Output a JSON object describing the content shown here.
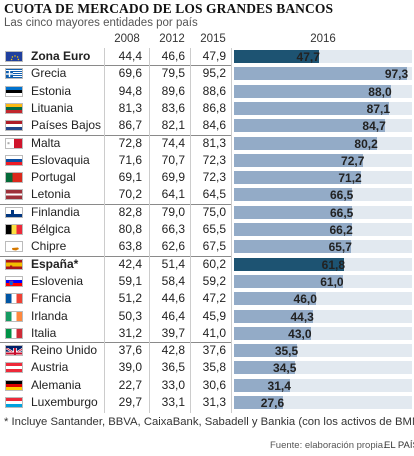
{
  "title": "CUOTA DE MERCADO DE LOS GRANDES BANCOS",
  "subtitle": "Las cinco mayores entidades por país",
  "footnote": "* Incluye Santander, BBVA, CaixaBank, Sabadell y Bankia (con los activos de BMN)",
  "source": "Fuente: elaboración propia.",
  "brand": "EL PAÍS",
  "colors": {
    "highlight_bar": "#1d5372",
    "bar": "#93abc7",
    "track": "#e2e9f0"
  },
  "chart_data": {
    "type": "table",
    "title": "CUOTA DE MERCADO DE LOS GRANDES BANCOS",
    "subtitle": "Las cinco mayores entidades por país",
    "columns": [
      "2008",
      "2012",
      "2015",
      "2016"
    ],
    "bar_column": "2016",
    "bar_max": 100,
    "rows": [
      {
        "country": "Zona Euro",
        "flag": "eu",
        "v2008": "44,4",
        "v2012": "46,6",
        "v2015": "47,9",
        "v2016": 47.7,
        "label2016": "47,7",
        "highlight": true
      },
      {
        "country": "Grecia",
        "flag": "gr",
        "v2008": "69,6",
        "v2012": "79,5",
        "v2015": "95,2",
        "v2016": 97.3,
        "label2016": "97,3"
      },
      {
        "country": "Estonia",
        "flag": "ee",
        "v2008": "94,8",
        "v2012": "89,6",
        "v2015": "88,6",
        "v2016": 88.0,
        "label2016": "88,0"
      },
      {
        "country": "Lituania",
        "flag": "lt",
        "v2008": "81,3",
        "v2012": "83,6",
        "v2015": "86,8",
        "v2016": 87.1,
        "label2016": "87,1"
      },
      {
        "country": "Países Bajos",
        "flag": "nl",
        "v2008": "86,7",
        "v2012": "82,1",
        "v2015": "84,6",
        "v2016": 84.7,
        "label2016": "84,7"
      },
      {
        "country": "Malta",
        "flag": "mt",
        "v2008": "72,8",
        "v2012": "74,4",
        "v2015": "81,3",
        "v2016": 80.2,
        "label2016": "80,2"
      },
      {
        "country": "Eslovaquia",
        "flag": "sk",
        "v2008": "71,6",
        "v2012": "70,7",
        "v2015": "72,3",
        "v2016": 72.7,
        "label2016": "72,7"
      },
      {
        "country": "Portugal",
        "flag": "pt",
        "v2008": "69,1",
        "v2012": "69,9",
        "v2015": "72,3",
        "v2016": 71.2,
        "label2016": "71,2"
      },
      {
        "country": "Letonia",
        "flag": "lv",
        "v2008": "70,2",
        "v2012": "64,1",
        "v2015": "64,5",
        "v2016": 66.5,
        "label2016": "66,5"
      },
      {
        "country": "Finlandia",
        "flag": "fi",
        "v2008": "82,8",
        "v2012": "79,0",
        "v2015": "75,0",
        "v2016": 66.5,
        "label2016": "66,5"
      },
      {
        "country": "Bélgica",
        "flag": "be",
        "v2008": "80,8",
        "v2012": "66,3",
        "v2015": "65,5",
        "v2016": 66.2,
        "label2016": "66,2"
      },
      {
        "country": "Chipre",
        "flag": "cy",
        "v2008": "63,8",
        "v2012": "62,6",
        "v2015": "67,5",
        "v2016": 65.7,
        "label2016": "65,7"
      },
      {
        "country": "España*",
        "flag": "es",
        "v2008": "42,4",
        "v2012": "51,4",
        "v2015": "60,2",
        "v2016": 61.8,
        "label2016": "61,8",
        "highlight": true
      },
      {
        "country": "Eslovenia",
        "flag": "si",
        "v2008": "59,1",
        "v2012": "58,4",
        "v2015": "59,2",
        "v2016": 61.0,
        "label2016": "61,0"
      },
      {
        "country": "Francia",
        "flag": "fr",
        "v2008": "51,2",
        "v2012": "44,6",
        "v2015": "47,2",
        "v2016": 46.0,
        "label2016": "46,0"
      },
      {
        "country": "Irlanda",
        "flag": "ie",
        "v2008": "50,3",
        "v2012": "46,4",
        "v2015": "45,9",
        "v2016": 44.3,
        "label2016": "44,3"
      },
      {
        "country": "Italia",
        "flag": "it",
        "v2008": "31,2",
        "v2012": "39,7",
        "v2015": "41,0",
        "v2016": 43.0,
        "label2016": "43,0"
      },
      {
        "country": "Reino Unido",
        "flag": "gb",
        "v2008": "37,6",
        "v2012": "42,8",
        "v2015": "37,6",
        "v2016": 35.5,
        "label2016": "35,5"
      },
      {
        "country": "Austria",
        "flag": "at",
        "v2008": "39,0",
        "v2012": "36,5",
        "v2015": "35,8",
        "v2016": 34.5,
        "label2016": "34,5"
      },
      {
        "country": "Alemania",
        "flag": "de",
        "v2008": "22,7",
        "v2012": "33,0",
        "v2015": "30,6",
        "v2016": 31.4,
        "label2016": "31,4"
      },
      {
        "country": "Luxemburgo",
        "flag": "lu",
        "v2008": "29,7",
        "v2012": "33,1",
        "v2015": "31,3",
        "v2016": 27.6,
        "label2016": "27,6"
      }
    ]
  }
}
